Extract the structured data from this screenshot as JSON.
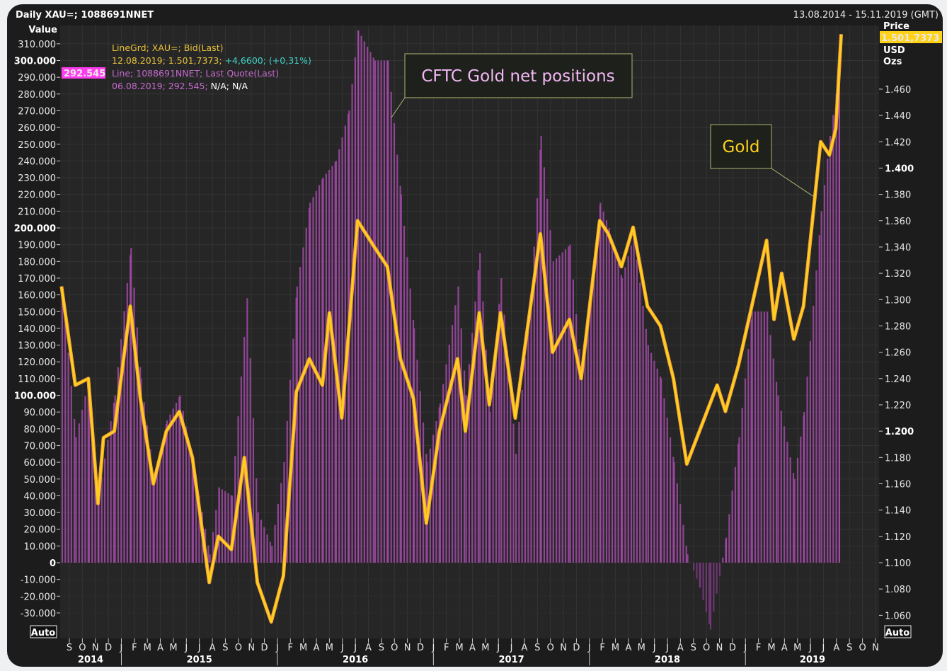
{
  "header": {
    "title": "Daily XAU=; 1088691NNET",
    "range": "13.08.2014 - 15.11.2019 (GMT)"
  },
  "left_axis": {
    "label": "Value",
    "current": "292.545",
    "auto": "Auto"
  },
  "right_axis": {
    "label_lines": [
      "Price",
      "USD",
      "Ozs"
    ],
    "current": "1.501,7373",
    "auto": "Auto"
  },
  "legend": {
    "line1": "LineGrd; XAU=; Bid(Last)",
    "line2_a": "12.08.2019; 1.501,7373;",
    "line2_b": "+4,6600; (+0,31%)",
    "line3": "Line; 1088691NNET; Last Quote(Last)",
    "line4_a": "06.08.2019; 292.545;",
    "line4_b": "N/A; N/A"
  },
  "annotations": {
    "cftc": "CFTC Gold net positions",
    "gold": "Gold"
  },
  "colors": {
    "gold": "#ffd21a",
    "gold_light": "#f5a33a",
    "cftc": "#c45ccc",
    "negative": "#1f3b25",
    "background": "#1c1c1c"
  },
  "chart_data": {
    "type": "line+bar",
    "title": "Daily XAU=; 1088691NNET",
    "x_range": [
      "2014-08-13",
      "2019-11-15"
    ],
    "x_month_ticks": [
      "S",
      "O",
      "N",
      "D",
      "J",
      "F",
      "M",
      "A",
      "M",
      "J",
      "J",
      "A",
      "S",
      "O",
      "N",
      "D",
      "J",
      "F",
      "M",
      "A",
      "M",
      "J",
      "J",
      "A",
      "S",
      "O",
      "N",
      "D",
      "J",
      "F",
      "M",
      "A",
      "M",
      "J",
      "J",
      "A",
      "S",
      "O",
      "N",
      "D",
      "J",
      "F",
      "M",
      "A",
      "M",
      "J",
      "J",
      "A",
      "S",
      "O",
      "N",
      "D",
      "J",
      "F",
      "M",
      "A",
      "M",
      "J",
      "J",
      "A",
      "S",
      "O",
      "N"
    ],
    "x_years": [
      "2014",
      "2015",
      "2016",
      "2017",
      "2018",
      "2019"
    ],
    "left_ylim": [
      -35000,
      315000
    ],
    "left_ticks": [
      "310.000",
      "300.000",
      "290.000",
      "280.000",
      "270.000",
      "260.000",
      "250.000",
      "240.000",
      "230.000",
      "220.000",
      "210.000",
      "200.000",
      "190.000",
      "180.000",
      "170.000",
      "160.000",
      "150.000",
      "140.000",
      "130.000",
      "120.000",
      "110.000",
      "100.000",
      "90.000",
      "80.000",
      "70.000",
      "60.000",
      "50.000",
      "40.000",
      "30.000",
      "20.000",
      "10.000",
      "0",
      "-10.000",
      "-20.000",
      "-30.000"
    ],
    "right_ylim": [
      1.05,
      1.515
    ],
    "right_ticks": [
      "1.460",
      "1.440",
      "1.420",
      "1.400",
      "1.380",
      "1.360",
      "1.340",
      "1.320",
      "1.300",
      "1.280",
      "1.260",
      "1.240",
      "1.220",
      "1.200",
      "1.180",
      "1.160",
      "1.140",
      "1.120",
      "1.100",
      "1.080",
      "1.060"
    ],
    "series": [
      {
        "name": "XAU=",
        "axis": "right",
        "style": "line",
        "points": [
          [
            "2014-08-13",
            1310
          ],
          [
            "2014-09-15",
            1235
          ],
          [
            "2014-10-15",
            1240
          ],
          [
            "2014-11-07",
            1145
          ],
          [
            "2014-11-20",
            1195
          ],
          [
            "2014-12-15",
            1200
          ],
          [
            "2015-01-22",
            1295
          ],
          [
            "2015-02-15",
            1225
          ],
          [
            "2015-03-15",
            1160
          ],
          [
            "2015-04-15",
            1200
          ],
          [
            "2015-05-15",
            1215
          ],
          [
            "2015-06-15",
            1180
          ],
          [
            "2015-07-24",
            1085
          ],
          [
            "2015-08-15",
            1120
          ],
          [
            "2015-09-15",
            1110
          ],
          [
            "2015-10-15",
            1180
          ],
          [
            "2015-11-15",
            1085
          ],
          [
            "2015-12-17",
            1055
          ],
          [
            "2016-01-15",
            1090
          ],
          [
            "2016-02-15",
            1230
          ],
          [
            "2016-03-15",
            1255
          ],
          [
            "2016-04-15",
            1235
          ],
          [
            "2016-05-01",
            1290
          ],
          [
            "2016-05-30",
            1210
          ],
          [
            "2016-07-06",
            1360
          ],
          [
            "2016-08-15",
            1340
          ],
          [
            "2016-09-15",
            1325
          ],
          [
            "2016-10-15",
            1255
          ],
          [
            "2016-11-15",
            1225
          ],
          [
            "2016-12-15",
            1130
          ],
          [
            "2017-01-15",
            1200
          ],
          [
            "2017-02-27",
            1255
          ],
          [
            "2017-03-15",
            1200
          ],
          [
            "2017-04-17",
            1290
          ],
          [
            "2017-05-10",
            1220
          ],
          [
            "2017-06-06",
            1290
          ],
          [
            "2017-07-10",
            1210
          ],
          [
            "2017-09-08",
            1350
          ],
          [
            "2017-10-06",
            1260
          ],
          [
            "2017-11-15",
            1285
          ],
          [
            "2017-12-12",
            1240
          ],
          [
            "2018-01-25",
            1360
          ],
          [
            "2018-02-15",
            1350
          ],
          [
            "2018-03-15",
            1325
          ],
          [
            "2018-04-12",
            1355
          ],
          [
            "2018-05-15",
            1295
          ],
          [
            "2018-06-15",
            1280
          ],
          [
            "2018-07-15",
            1240
          ],
          [
            "2018-08-16",
            1175
          ],
          [
            "2018-09-15",
            1200
          ],
          [
            "2018-10-26",
            1235
          ],
          [
            "2018-11-15",
            1215
          ],
          [
            "2018-12-15",
            1250
          ],
          [
            "2019-02-20",
            1345
          ],
          [
            "2019-03-07",
            1285
          ],
          [
            "2019-03-25",
            1320
          ],
          [
            "2019-04-23",
            1270
          ],
          [
            "2019-05-15",
            1295
          ],
          [
            "2019-06-25",
            1420
          ],
          [
            "2019-07-15",
            1410
          ],
          [
            "2019-07-30",
            1430
          ],
          [
            "2019-08-12",
            1501.74
          ]
        ]
      },
      {
        "name": "1088691NNET",
        "axis": "left",
        "style": "bar",
        "points": [
          [
            "2014-08-13",
            165000
          ],
          [
            "2014-09-15",
            75000
          ],
          [
            "2014-10-15",
            110000
          ],
          [
            "2014-11-07",
            40000
          ],
          [
            "2014-12-15",
            100000
          ],
          [
            "2015-01-22",
            188000
          ],
          [
            "2015-02-15",
            110000
          ],
          [
            "2015-03-15",
            50000
          ],
          [
            "2015-04-15",
            85000
          ],
          [
            "2015-05-15",
            100000
          ],
          [
            "2015-06-15",
            60000
          ],
          [
            "2015-07-24",
            5000
          ],
          [
            "2015-08-15",
            45000
          ],
          [
            "2015-09-15",
            40000
          ],
          [
            "2015-10-20",
            158000
          ],
          [
            "2015-11-15",
            30000
          ],
          [
            "2015-12-17",
            10000
          ],
          [
            "2016-01-15",
            60000
          ],
          [
            "2016-02-15",
            165000
          ],
          [
            "2016-03-15",
            215000
          ],
          [
            "2016-04-15",
            230000
          ],
          [
            "2016-05-15",
            240000
          ],
          [
            "2016-06-15",
            270000
          ],
          [
            "2016-07-06",
            318000
          ],
          [
            "2016-08-15",
            300000
          ],
          [
            "2016-09-15",
            300000
          ],
          [
            "2016-10-15",
            220000
          ],
          [
            "2016-11-15",
            140000
          ],
          [
            "2016-12-15",
            60000
          ],
          [
            "2017-01-15",
            95000
          ],
          [
            "2017-02-27",
            165000
          ],
          [
            "2017-03-15",
            100000
          ],
          [
            "2017-04-17",
            185000
          ],
          [
            "2017-05-10",
            90000
          ],
          [
            "2017-06-06",
            170000
          ],
          [
            "2017-07-10",
            65000
          ],
          [
            "2017-08-15",
            160000
          ],
          [
            "2017-09-08",
            255000
          ],
          [
            "2017-10-06",
            180000
          ],
          [
            "2017-11-15",
            190000
          ],
          [
            "2017-12-12",
            110000
          ],
          [
            "2018-01-25",
            215000
          ],
          [
            "2018-02-15",
            200000
          ],
          [
            "2018-03-15",
            170000
          ],
          [
            "2018-04-12",
            195000
          ],
          [
            "2018-05-15",
            130000
          ],
          [
            "2018-06-15",
            110000
          ],
          [
            "2018-07-15",
            60000
          ],
          [
            "2018-08-16",
            5000
          ],
          [
            "2018-09-15",
            -15000
          ],
          [
            "2018-10-09",
            -40000
          ],
          [
            "2018-11-15",
            15000
          ],
          [
            "2018-12-15",
            75000
          ],
          [
            "2019-01-15",
            150000
          ],
          [
            "2019-02-20",
            150000
          ],
          [
            "2019-03-15",
            100000
          ],
          [
            "2019-04-23",
            50000
          ],
          [
            "2019-05-15",
            90000
          ],
          [
            "2019-06-25",
            210000
          ],
          [
            "2019-07-15",
            255000
          ],
          [
            "2019-08-06",
            292545
          ]
        ]
      }
    ]
  }
}
